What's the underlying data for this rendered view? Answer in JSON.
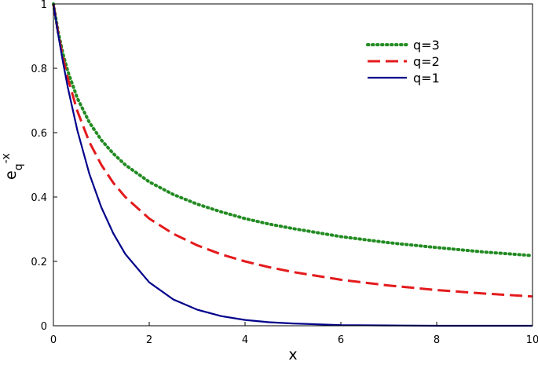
{
  "chart_data": {
    "type": "line",
    "x_label": "x",
    "y_label": {
      "base": "e",
      "subscript": "q",
      "superscript": "-x"
    },
    "xlim": [
      0,
      10
    ],
    "ylim": [
      0,
      1
    ],
    "xticks": [
      0,
      2,
      4,
      6,
      8,
      10
    ],
    "yticks": [
      0,
      0.2,
      0.4,
      0.6,
      0.8,
      1
    ],
    "legend": "upper right",
    "x": [
      0,
      0.1,
      0.2,
      0.3,
      0.5,
      0.75,
      1,
      1.25,
      1.5,
      2,
      2.5,
      3,
      3.5,
      4,
      4.5,
      5,
      6,
      7,
      8,
      9,
      10
    ],
    "series": [
      {
        "name": "q=3",
        "color": "#228b22",
        "style": "dotted",
        "values": [
          1,
          0.913,
          0.845,
          0.791,
          0.707,
          0.632,
          0.577,
          0.535,
          0.5,
          0.447,
          0.408,
          0.378,
          0.354,
          0.333,
          0.316,
          0.302,
          0.277,
          0.258,
          0.243,
          0.229,
          0.218
        ]
      },
      {
        "name": "q=2",
        "color": "#e41a1c",
        "style": "dashed",
        "values": [
          1,
          0.909,
          0.833,
          0.769,
          0.667,
          0.571,
          0.5,
          0.444,
          0.4,
          0.333,
          0.286,
          0.25,
          0.222,
          0.2,
          0.182,
          0.167,
          0.143,
          0.125,
          0.111,
          0.1,
          0.091
        ]
      },
      {
        "name": "q=1",
        "color": "#00008b",
        "style": "solid",
        "values": [
          1,
          0.905,
          0.819,
          0.741,
          0.607,
          0.472,
          0.368,
          0.287,
          0.223,
          0.135,
          0.082,
          0.05,
          0.03,
          0.018,
          0.011,
          0.007,
          0.002,
          0.001,
          0,
          0,
          0
        ]
      }
    ]
  }
}
